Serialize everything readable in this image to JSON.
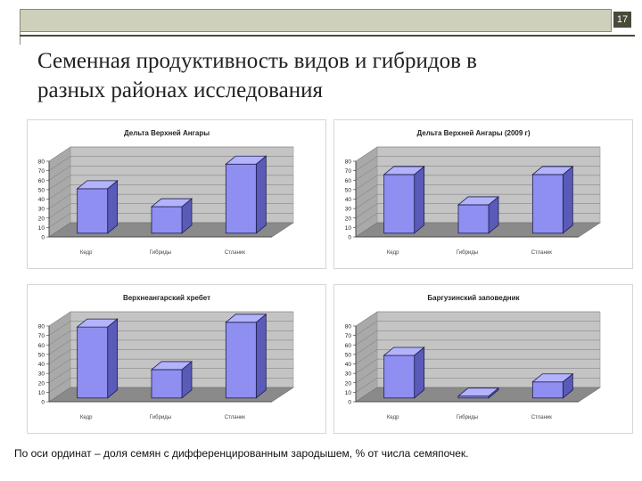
{
  "slide": {
    "number": "17"
  },
  "title": {
    "line1": "Семенная продуктивность видов и гибридов в",
    "line2": "разных районах исследования"
  },
  "footnote": "По оси ординат – доля семян с дифференцированным зародышем, % от числа семяпочек.",
  "colors": {
    "bar_face": "#8f8ff2",
    "bar_top": "#b3b3fb",
    "bar_side": "#5a5ab8",
    "bar_stroke": "#1e1e50",
    "wall": "#c4c4c4",
    "floor": "#8a8a8a",
    "grid": "#7a7a7a"
  },
  "chart_data": [
    {
      "type": "bar",
      "title": "Дельта Верхней Ангары",
      "categories": [
        "Кедр",
        "Гибриды",
        "Стланик"
      ],
      "values": [
        47,
        28,
        73
      ],
      "ylim": [
        0,
        80
      ],
      "yticks": [
        "0",
        "10",
        "20",
        "30",
        "40",
        "50",
        "60",
        "70",
        "80"
      ],
      "grid": true
    },
    {
      "type": "bar",
      "title": "Дельта Верхней Ангары (2009 г)",
      "categories": [
        "Кедр",
        "Гибриды",
        "Стланик"
      ],
      "values": [
        62,
        30,
        62
      ],
      "ylim": [
        0,
        80
      ],
      "yticks": [
        "0",
        "10",
        "20",
        "30",
        "40",
        "50",
        "60",
        "70",
        "80"
      ],
      "grid": true
    },
    {
      "type": "bar",
      "title": "Верхнеангарский хребет",
      "categories": [
        "Кедр",
        "Гибриды",
        "Стланик"
      ],
      "values": [
        75,
        30,
        80
      ],
      "ylim": [
        0,
        80
      ],
      "yticks": [
        "0",
        "10",
        "20",
        "30",
        "40",
        "50",
        "60",
        "70",
        "80"
      ],
      "grid": true
    },
    {
      "type": "bar",
      "title": "Баргузинский заповедник",
      "categories": [
        "Кедр",
        "Гибриды",
        "Стланик"
      ],
      "values": [
        45,
        2,
        17
      ],
      "ylim": [
        0,
        80
      ],
      "yticks": [
        "0",
        "10",
        "20",
        "30",
        "40",
        "50",
        "60",
        "70",
        "80"
      ],
      "grid": true
    }
  ]
}
